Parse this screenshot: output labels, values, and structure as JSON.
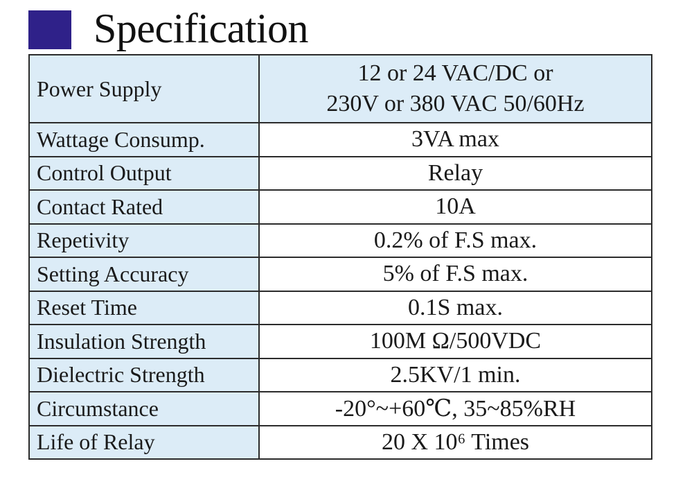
{
  "header": {
    "title": "Specification",
    "accent_color": "#2f2189"
  },
  "table": {
    "label_background": "#dcecf7",
    "rows": [
      {
        "label": "Power Supply",
        "value_lines": [
          "12 or 24 VAC/DC or",
          "230V or 380 VAC 50/60Hz"
        ]
      },
      {
        "label": "Wattage Consump.",
        "value": "3VA max"
      },
      {
        "label": "Control Output",
        "value": "Relay"
      },
      {
        "label": "Contact Rated",
        "value": "10A"
      },
      {
        "label": "Repetivity",
        "value": "0.2% of F.S max."
      },
      {
        "label": "Setting Accuracy",
        "value": "5% of F.S max."
      },
      {
        "label": "Reset Time",
        "value": "0.1S max."
      },
      {
        "label": "Insulation Strength",
        "value": "100M Ω/500VDC"
      },
      {
        "label": "Dielectric Strength",
        "value": "2.5KV/1 min."
      },
      {
        "label": "Circumstance",
        "value": "-20°~+60℃, 35~85%RH"
      },
      {
        "label": "Life of Relay",
        "value": "20 X 10⁶ Times"
      }
    ]
  }
}
